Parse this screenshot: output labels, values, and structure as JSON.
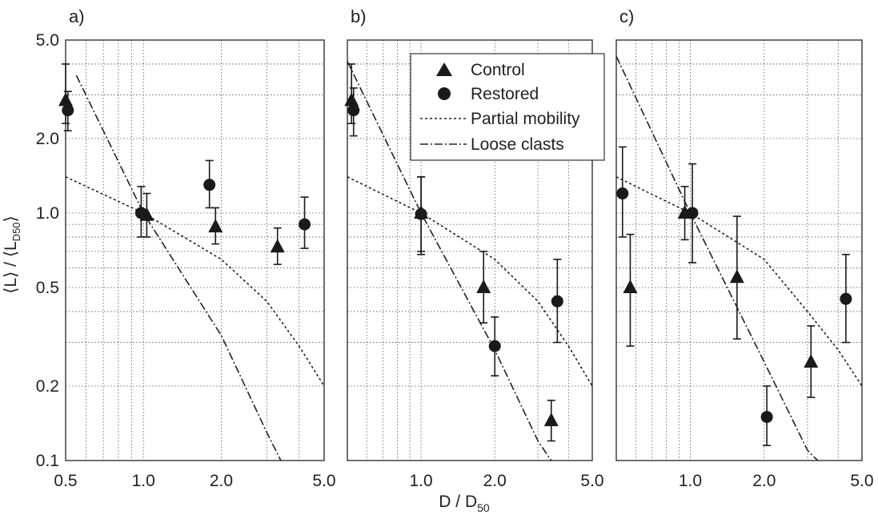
{
  "figure": {
    "x_title_main": "D / D",
    "x_title_sub": "50",
    "y_title_main": "⟨L⟩ / ⟨L",
    "y_title_sub": "D50",
    "y_title_close": "⟩"
  },
  "legend": {
    "control": "Control",
    "restored": "Restored",
    "partial": "Partial mobility",
    "loose": "Loose clasts"
  },
  "colors": {
    "marker": "#1a1a1a",
    "grid": "#555555",
    "frame": "#333333"
  },
  "chart_data": [
    {
      "type": "scatter",
      "panel_label": "a)",
      "x_scale": "log",
      "y_scale": "log",
      "xlim": [
        0.5,
        5.0
      ],
      "ylim": [
        0.1,
        5.0
      ],
      "x_ticks": [
        "0.5",
        "1.0",
        "2.0",
        "5.0"
      ],
      "y_ticks": [
        "0.1",
        "0.2",
        "0.5",
        "1.0",
        "2.0",
        "5.0"
      ],
      "grid": true,
      "legend_position": "",
      "series": [
        {
          "name": "Control",
          "marker": "triangle",
          "points": [
            {
              "x": 0.5,
              "y": 2.85,
              "lo": 2.3,
              "hi": 4.0
            },
            {
              "x": 1.03,
              "y": 0.98,
              "lo": 0.8,
              "hi": 1.2
            },
            {
              "x": 1.9,
              "y": 0.88,
              "lo": 0.75,
              "hi": 1.05
            },
            {
              "x": 3.3,
              "y": 0.73,
              "lo": 0.62,
              "hi": 0.87
            }
          ]
        },
        {
          "name": "Restored",
          "marker": "circle",
          "points": [
            {
              "x": 0.51,
              "y": 2.6,
              "lo": 2.15,
              "hi": 3.1
            },
            {
              "x": 0.98,
              "y": 1.0,
              "lo": 0.8,
              "hi": 1.28
            },
            {
              "x": 1.8,
              "y": 1.3,
              "lo": 1.05,
              "hi": 1.63
            },
            {
              "x": 4.2,
              "y": 0.9,
              "lo": 0.72,
              "hi": 1.16
            }
          ]
        }
      ],
      "lines": [
        {
          "name": "Partial mobility",
          "style": "dotted",
          "x": [
            0.5,
            1.0,
            2.0,
            3.0,
            4.0,
            5.0
          ],
          "y": [
            1.4,
            1.0,
            0.65,
            0.44,
            0.29,
            0.2
          ]
        },
        {
          "name": "Loose clasts",
          "style": "dashdot",
          "x": [
            0.55,
            1.0,
            2.0,
            3.0,
            3.4
          ],
          "y": [
            3.6,
            1.0,
            0.32,
            0.13,
            0.1
          ]
        }
      ]
    },
    {
      "type": "scatter",
      "panel_label": "b)",
      "x_scale": "log",
      "y_scale": "log",
      "xlim": [
        0.5,
        5.0
      ],
      "ylim": [
        0.1,
        5.0
      ],
      "x_ticks": [
        "1.0",
        "2.0",
        "5.0"
      ],
      "y_ticks": [],
      "grid": true,
      "legend_position": "top-right",
      "series": [
        {
          "name": "Control",
          "marker": "triangle",
          "points": [
            {
              "x": 0.52,
              "y": 2.85,
              "lo": 2.3,
              "hi": 4.0
            },
            {
              "x": 1.0,
              "y": 1.0,
              "lo": 0.7,
              "hi": 1.4
            },
            {
              "x": 1.8,
              "y": 0.5,
              "lo": 0.36,
              "hi": 0.7
            },
            {
              "x": 3.4,
              "y": 0.145,
              "lo": 0.12,
              "hi": 0.175
            }
          ]
        },
        {
          "name": "Restored",
          "marker": "circle",
          "points": [
            {
              "x": 0.53,
              "y": 2.6,
              "lo": 2.05,
              "hi": 3.2
            },
            {
              "x": 1.0,
              "y": 0.99,
              "lo": 0.68,
              "hi": 1.4
            },
            {
              "x": 2.0,
              "y": 0.29,
              "lo": 0.22,
              "hi": 0.38
            },
            {
              "x": 3.6,
              "y": 0.44,
              "lo": 0.3,
              "hi": 0.65
            }
          ]
        }
      ],
      "lines": [
        {
          "name": "Partial mobility",
          "style": "dotted",
          "x": [
            0.5,
            1.0,
            2.0,
            3.0,
            4.0,
            5.0
          ],
          "y": [
            1.4,
            1.0,
            0.65,
            0.44,
            0.29,
            0.2
          ]
        },
        {
          "name": "Loose clasts",
          "style": "dashdot",
          "x": [
            0.5,
            1.0,
            2.0,
            3.0,
            3.4
          ],
          "y": [
            4.1,
            1.0,
            0.28,
            0.12,
            0.1
          ]
        }
      ]
    },
    {
      "type": "scatter",
      "panel_label": "c)",
      "x_scale": "log",
      "y_scale": "log",
      "xlim": [
        0.5,
        5.0
      ],
      "ylim": [
        0.1,
        5.0
      ],
      "x_ticks": [
        "1.0",
        "2.0",
        "5.0"
      ],
      "y_ticks": [],
      "grid": true,
      "legend_position": "",
      "series": [
        {
          "name": "Control",
          "marker": "triangle",
          "points": [
            {
              "x": 0.57,
              "y": 0.5,
              "lo": 0.29,
              "hi": 0.82
            },
            {
              "x": 0.95,
              "y": 1.0,
              "lo": 0.78,
              "hi": 1.28
            },
            {
              "x": 1.55,
              "y": 0.55,
              "lo": 0.31,
              "hi": 0.97
            },
            {
              "x": 3.1,
              "y": 0.25,
              "lo": 0.18,
              "hi": 0.35
            }
          ]
        },
        {
          "name": "Restored",
          "marker": "circle",
          "points": [
            {
              "x": 0.53,
              "y": 1.2,
              "lo": 0.8,
              "hi": 1.85
            },
            {
              "x": 1.02,
              "y": 1.0,
              "lo": 0.63,
              "hi": 1.58
            },
            {
              "x": 2.05,
              "y": 0.15,
              "lo": 0.115,
              "hi": 0.2
            },
            {
              "x": 4.3,
              "y": 0.45,
              "lo": 0.3,
              "hi": 0.68
            }
          ]
        }
      ],
      "lines": [
        {
          "name": "Partial mobility",
          "style": "dotted",
          "x": [
            0.5,
            1.0,
            2.0,
            3.0,
            4.0,
            5.0
          ],
          "y": [
            1.4,
            1.0,
            0.65,
            0.4,
            0.28,
            0.2
          ]
        },
        {
          "name": "Loose clasts",
          "style": "dashdot",
          "x": [
            0.5,
            1.0,
            2.0,
            3.0,
            3.3
          ],
          "y": [
            4.3,
            1.0,
            0.25,
            0.11,
            0.1
          ]
        }
      ]
    }
  ]
}
